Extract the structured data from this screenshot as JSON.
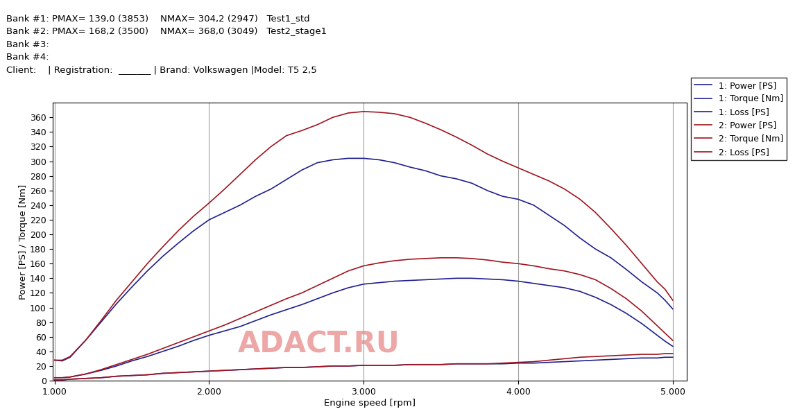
{
  "chart_data": {
    "type": "line",
    "header_lines": [
      "Bank #1: PMAX= 139,0 (3853)    NMAX= 304,2 (2947)   Test1_std",
      "Bank #2: PMAX= 168,2 (3500)    NMAX= 368,0 (3049)   Test2_stage1",
      "Bank #3:",
      "Bank #4:",
      "Client:    | Registration:  _______ | Brand: Volkswagen |Model: T5 2,5"
    ],
    "watermark": "ADACT.RU",
    "x_label": "Engine speed [rpm]",
    "y_label": "Power [PS] / Torque [Nm]",
    "x": [
      1000,
      1050,
      1100,
      1200,
      1300,
      1400,
      1500,
      1600,
      1700,
      1800,
      1900,
      2000,
      2100,
      2200,
      2300,
      2400,
      2500,
      2600,
      2700,
      2800,
      2900,
      3000,
      3100,
      3200,
      3300,
      3400,
      3500,
      3600,
      3700,
      3800,
      3900,
      4000,
      4100,
      4200,
      4300,
      4400,
      4500,
      4600,
      4700,
      4800,
      4900,
      4950,
      5000
    ],
    "series": [
      {
        "name": "1: Power [PS]",
        "color": "#1f1f8f",
        "values": [
          4,
          4,
          5,
          9,
          14,
          20,
          27,
          33,
          40,
          47,
          55,
          62,
          68,
          74,
          82,
          90,
          97,
          104,
          112,
          120,
          127,
          132,
          134,
          136,
          137,
          138,
          139,
          140,
          140,
          139,
          138,
          136,
          133,
          130,
          127,
          122,
          114,
          104,
          92,
          78,
          62,
          54,
          47
        ]
      },
      {
        "name": "1: Torque [Nm]",
        "color": "#1f1f8f",
        "values": [
          28,
          27,
          32,
          55,
          80,
          105,
          128,
          150,
          170,
          188,
          205,
          220,
          230,
          240,
          252,
          262,
          275,
          288,
          298,
          302,
          304,
          304,
          302,
          298,
          292,
          287,
          280,
          276,
          270,
          260,
          252,
          248,
          240,
          226,
          212,
          195,
          180,
          168,
          152,
          135,
          120,
          110,
          98
        ]
      },
      {
        "name": "1: Loss [PS]",
        "color": "#1f1f8f",
        "values": [
          1,
          1,
          2,
          3,
          4,
          6,
          7,
          8,
          10,
          11,
          12,
          13,
          14,
          15,
          16,
          17,
          18,
          18,
          19,
          20,
          20,
          21,
          21,
          21,
          22,
          22,
          22,
          23,
          23,
          23,
          23,
          24,
          24,
          25,
          26,
          27,
          28,
          29,
          30,
          31,
          31,
          32,
          32
        ]
      },
      {
        "name": "2: Power [PS]",
        "color": "#a0141e",
        "values": [
          4,
          4,
          5,
          9,
          15,
          22,
          29,
          36,
          44,
          52,
          60,
          68,
          76,
          85,
          94,
          103,
          112,
          120,
          130,
          140,
          150,
          157,
          161,
          164,
          166,
          167,
          168,
          168,
          167,
          165,
          162,
          160,
          157,
          153,
          150,
          145,
          138,
          126,
          112,
          95,
          75,
          65,
          55
        ]
      },
      {
        "name": "2: Torque [Nm]",
        "color": "#a0141e",
        "values": [
          28,
          28,
          33,
          55,
          82,
          110,
          135,
          160,
          183,
          205,
          225,
          243,
          262,
          282,
          302,
          320,
          335,
          342,
          350,
          360,
          366,
          368,
          367,
          365,
          360,
          352,
          343,
          333,
          322,
          310,
          300,
          291,
          282,
          273,
          262,
          248,
          230,
          208,
          185,
          160,
          135,
          125,
          110
        ]
      },
      {
        "name": "2: Loss [PS]",
        "color": "#a0141e",
        "values": [
          1,
          1,
          2,
          3,
          4,
          6,
          7,
          8,
          10,
          11,
          12,
          13,
          14,
          15,
          16,
          17,
          18,
          18,
          19,
          20,
          20,
          21,
          21,
          21,
          22,
          22,
          22,
          23,
          23,
          23,
          24,
          25,
          26,
          28,
          30,
          32,
          33,
          34,
          35,
          36,
          36,
          37,
          37
        ]
      }
    ],
    "xlim": [
      990,
      5090
    ],
    "ylim": [
      0,
      380
    ],
    "xticks": [
      {
        "value": 1000,
        "label": "1.000"
      },
      {
        "value": 2000,
        "label": "2.000"
      },
      {
        "value": 3000,
        "label": "3.000"
      },
      {
        "value": 4000,
        "label": "4.000"
      },
      {
        "value": 5000,
        "label": "5.000"
      }
    ],
    "yticks": [
      0,
      20,
      40,
      60,
      80,
      100,
      120,
      140,
      160,
      180,
      200,
      220,
      240,
      260,
      280,
      300,
      320,
      340,
      360
    ],
    "grid": true,
    "legend": "upper right"
  }
}
